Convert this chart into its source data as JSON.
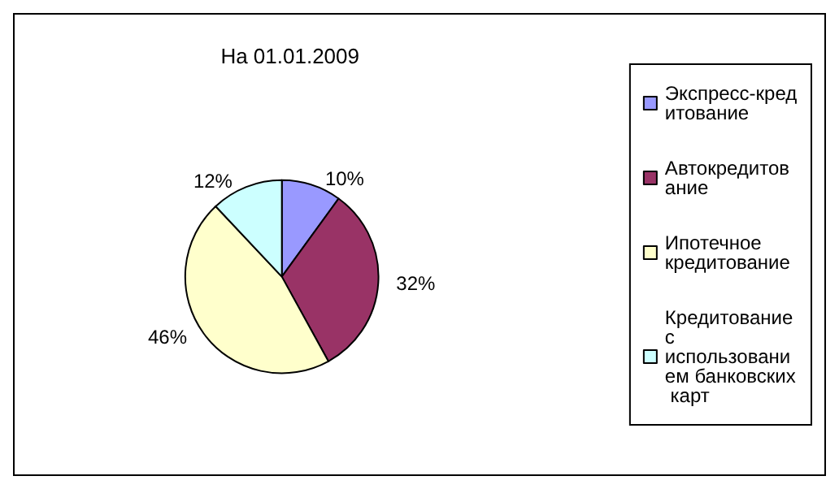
{
  "chart_data": {
    "type": "pie",
    "title": "На 01.01.2009",
    "categories": [
      "Экспресс-кредитование",
      "Автокредитование",
      "Ипотечное кредитование",
      "Кредитование с использованием банковских карт"
    ],
    "values": [
      10,
      32,
      46,
      12
    ],
    "colors": [
      "#9999ff",
      "#993366",
      "#ffffcc",
      "#ccffff"
    ],
    "value_labels": [
      "10%",
      "32%",
      "46%",
      "12%"
    ],
    "legend": "right"
  }
}
